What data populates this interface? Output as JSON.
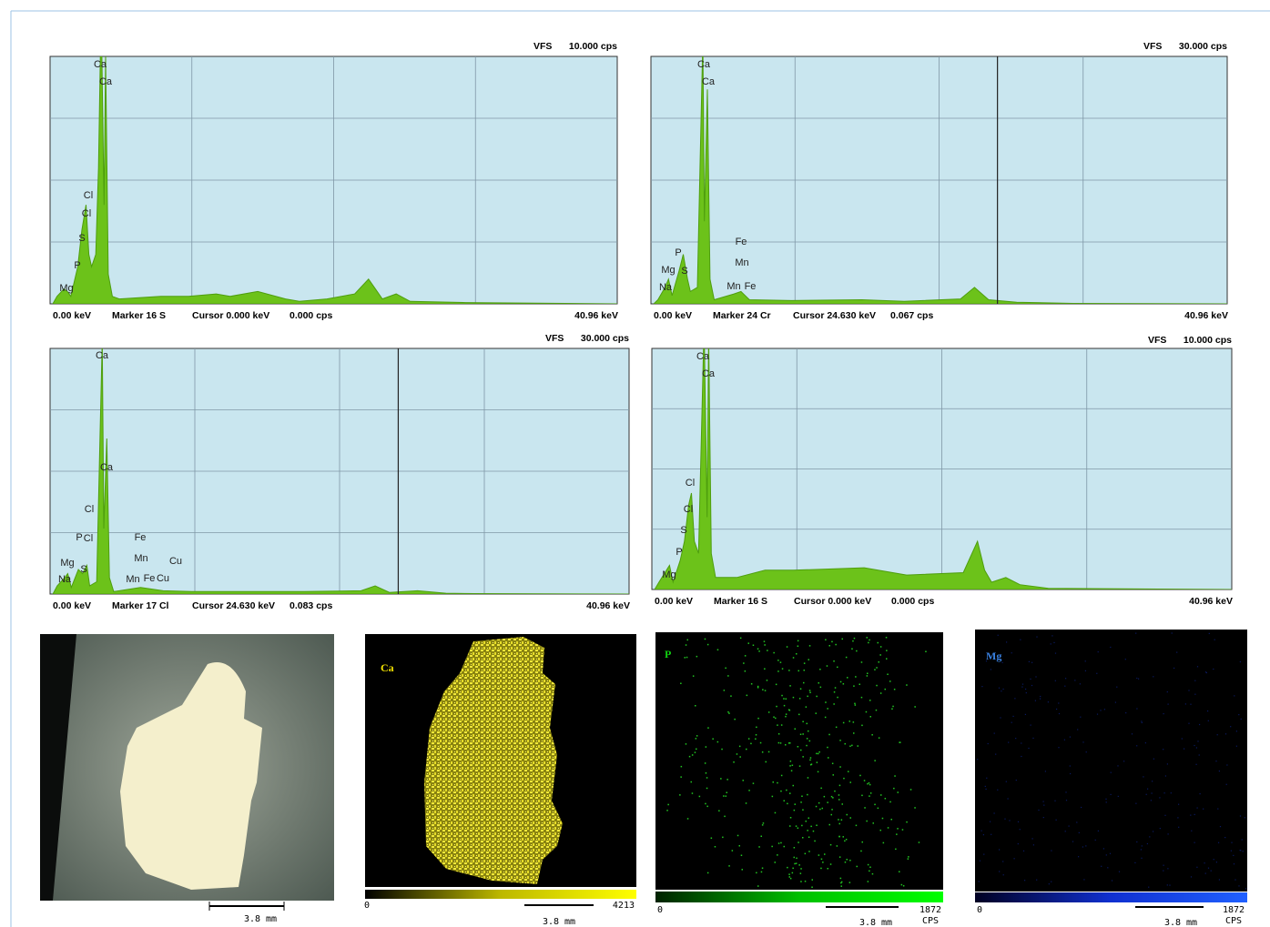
{
  "spectra": [
    {
      "vfs_label": "VFS",
      "vfs": "10.000 cps",
      "x_start": "0.00 keV",
      "marker": "Marker 16 S",
      "cursor": {
        "value": 0,
        "label": "Cursor 0.000 keV"
      },
      "cursor_cps": "0.000 cps",
      "x_end": "40.96 keV",
      "xlim": [
        0,
        40.96
      ],
      "ylim": [
        0,
        10
      ],
      "x": [
        0.2,
        0.5,
        1.0,
        1.25,
        1.5,
        2.0,
        2.3,
        2.6,
        2.8,
        3.0,
        3.3,
        3.5,
        3.69,
        3.9,
        4.01,
        4.2,
        4.5,
        5,
        8,
        10,
        12,
        13,
        15,
        17,
        18,
        20,
        22,
        23,
        23.5,
        24,
        25,
        26,
        30,
        40.96
      ],
      "values": [
        0,
        0.3,
        0.6,
        0.5,
        0.3,
        1.5,
        3.0,
        4.0,
        2.0,
        1.5,
        2.0,
        5.5,
        12,
        4,
        10,
        1.2,
        0.3,
        0.2,
        0.3,
        0.3,
        0.4,
        0.3,
        0.5,
        0.2,
        0.1,
        0.2,
        0.4,
        1.0,
        0.6,
        0.2,
        0.4,
        0.1,
        0.05,
        0
      ],
      "element_labels": [
        "Ca",
        "Ca",
        "Cl",
        "Cl",
        "S",
        "P",
        "Mg"
      ]
    },
    {
      "vfs_label": "VFS",
      "vfs": "30.000 cps",
      "x_start": "0.00 keV",
      "marker": "Marker 24 Cr",
      "cursor": {
        "value": 24.63,
        "label": "Cursor 24.630 keV"
      },
      "cursor_cps": "0.067 cps",
      "x_end": "40.96 keV",
      "xlim": [
        0,
        40.96
      ],
      "ylim": [
        0,
        30
      ],
      "x": [
        0.2,
        0.5,
        1.0,
        1.25,
        1.5,
        2.0,
        2.3,
        2.6,
        2.8,
        3.3,
        3.69,
        3.8,
        4.01,
        4.2,
        4.5,
        5.9,
        6.4,
        7,
        10,
        15,
        18,
        22,
        23,
        24,
        26,
        30,
        40.96
      ],
      "values": [
        0,
        0.5,
        2,
        3,
        1,
        4,
        6,
        3,
        1.5,
        2,
        32,
        10,
        26,
        3,
        0.5,
        1.2,
        1.5,
        0.5,
        0.4,
        0.5,
        0.3,
        0.6,
        2,
        0.5,
        0.2,
        0.05,
        0
      ],
      "element_labels": [
        "Ca",
        "Ca",
        "Fe",
        "P",
        "Mn",
        "Mg",
        "S",
        "Na",
        "Mn",
        "Fe"
      ]
    },
    {
      "vfs_label": "VFS",
      "vfs": "30.000 cps",
      "x_start": "0.00 keV",
      "marker": "Marker 17 Cl",
      "cursor": {
        "value": 24.63,
        "label": "Cursor 24.630 keV"
      },
      "cursor_cps": "0.083 cps",
      "x_end": "40.96 keV",
      "xlim": [
        0,
        40.96
      ],
      "ylim": [
        0,
        30
      ],
      "x": [
        0.2,
        0.5,
        1.04,
        1.25,
        1.5,
        2.0,
        2.3,
        2.6,
        2.8,
        3.3,
        3.69,
        3.8,
        4.01,
        4.2,
        4.5,
        6.4,
        8,
        10,
        15,
        18,
        22,
        23,
        24,
        26,
        28,
        30,
        40.96
      ],
      "values": [
        0,
        1,
        2,
        2.5,
        0.8,
        3,
        2.5,
        3.5,
        1,
        1.5,
        31,
        8,
        19,
        2,
        0.3,
        0.8,
        0.4,
        0.3,
        0.3,
        0.3,
        0.4,
        1.0,
        0.2,
        0.4,
        0.1,
        0.05,
        0
      ],
      "element_labels": [
        "Ca",
        "Ca",
        "Cl",
        "P",
        "Cl",
        "Fe",
        "Mn",
        "Mg",
        "Cu",
        "S",
        "Na",
        "Mn",
        "Fe",
        "Cu"
      ]
    },
    {
      "vfs_label": "VFS",
      "vfs": "10.000 cps",
      "x_start": "0.00 keV",
      "marker": "Marker 16 S",
      "cursor": {
        "value": 0,
        "label": "Cursor 0.000 keV"
      },
      "cursor_cps": "0.000 cps",
      "x_end": "40.96 keV",
      "xlim": [
        0,
        40.96
      ],
      "ylim": [
        0,
        10
      ],
      "x": [
        0.2,
        0.5,
        1.25,
        1.5,
        2.0,
        2.3,
        2.6,
        2.8,
        3.0,
        3.3,
        3.69,
        3.9,
        4.01,
        4.2,
        4.5,
        6,
        8,
        10,
        15,
        18,
        22,
        23,
        23.5,
        24,
        25,
        26,
        28,
        40.96
      ],
      "values": [
        0,
        0.3,
        1,
        0.3,
        1.2,
        2,
        3.5,
        4,
        2,
        1.5,
        11,
        3,
        10.5,
        1.5,
        0.5,
        0.5,
        0.8,
        0.8,
        0.9,
        0.6,
        0.7,
        2.0,
        0.8,
        0.3,
        0.5,
        0.2,
        0.05,
        0
      ],
      "element_labels": [
        "Ca",
        "Ca",
        "Cl",
        "Cl",
        "S",
        "P",
        "Mg"
      ]
    }
  ],
  "maps": [
    {
      "scale": "3.8 mm"
    },
    {
      "element": "Ca",
      "min": 0,
      "max": 4213,
      "scale": "3.8 mm"
    },
    {
      "element": "P",
      "min": 0,
      "max": 1872,
      "unit": "CPS",
      "scale": "3.8 mm"
    },
    {
      "element": "Mg",
      "min": 0,
      "max": 1872,
      "unit": "CPS",
      "scale": "3.8 mm"
    }
  ]
}
